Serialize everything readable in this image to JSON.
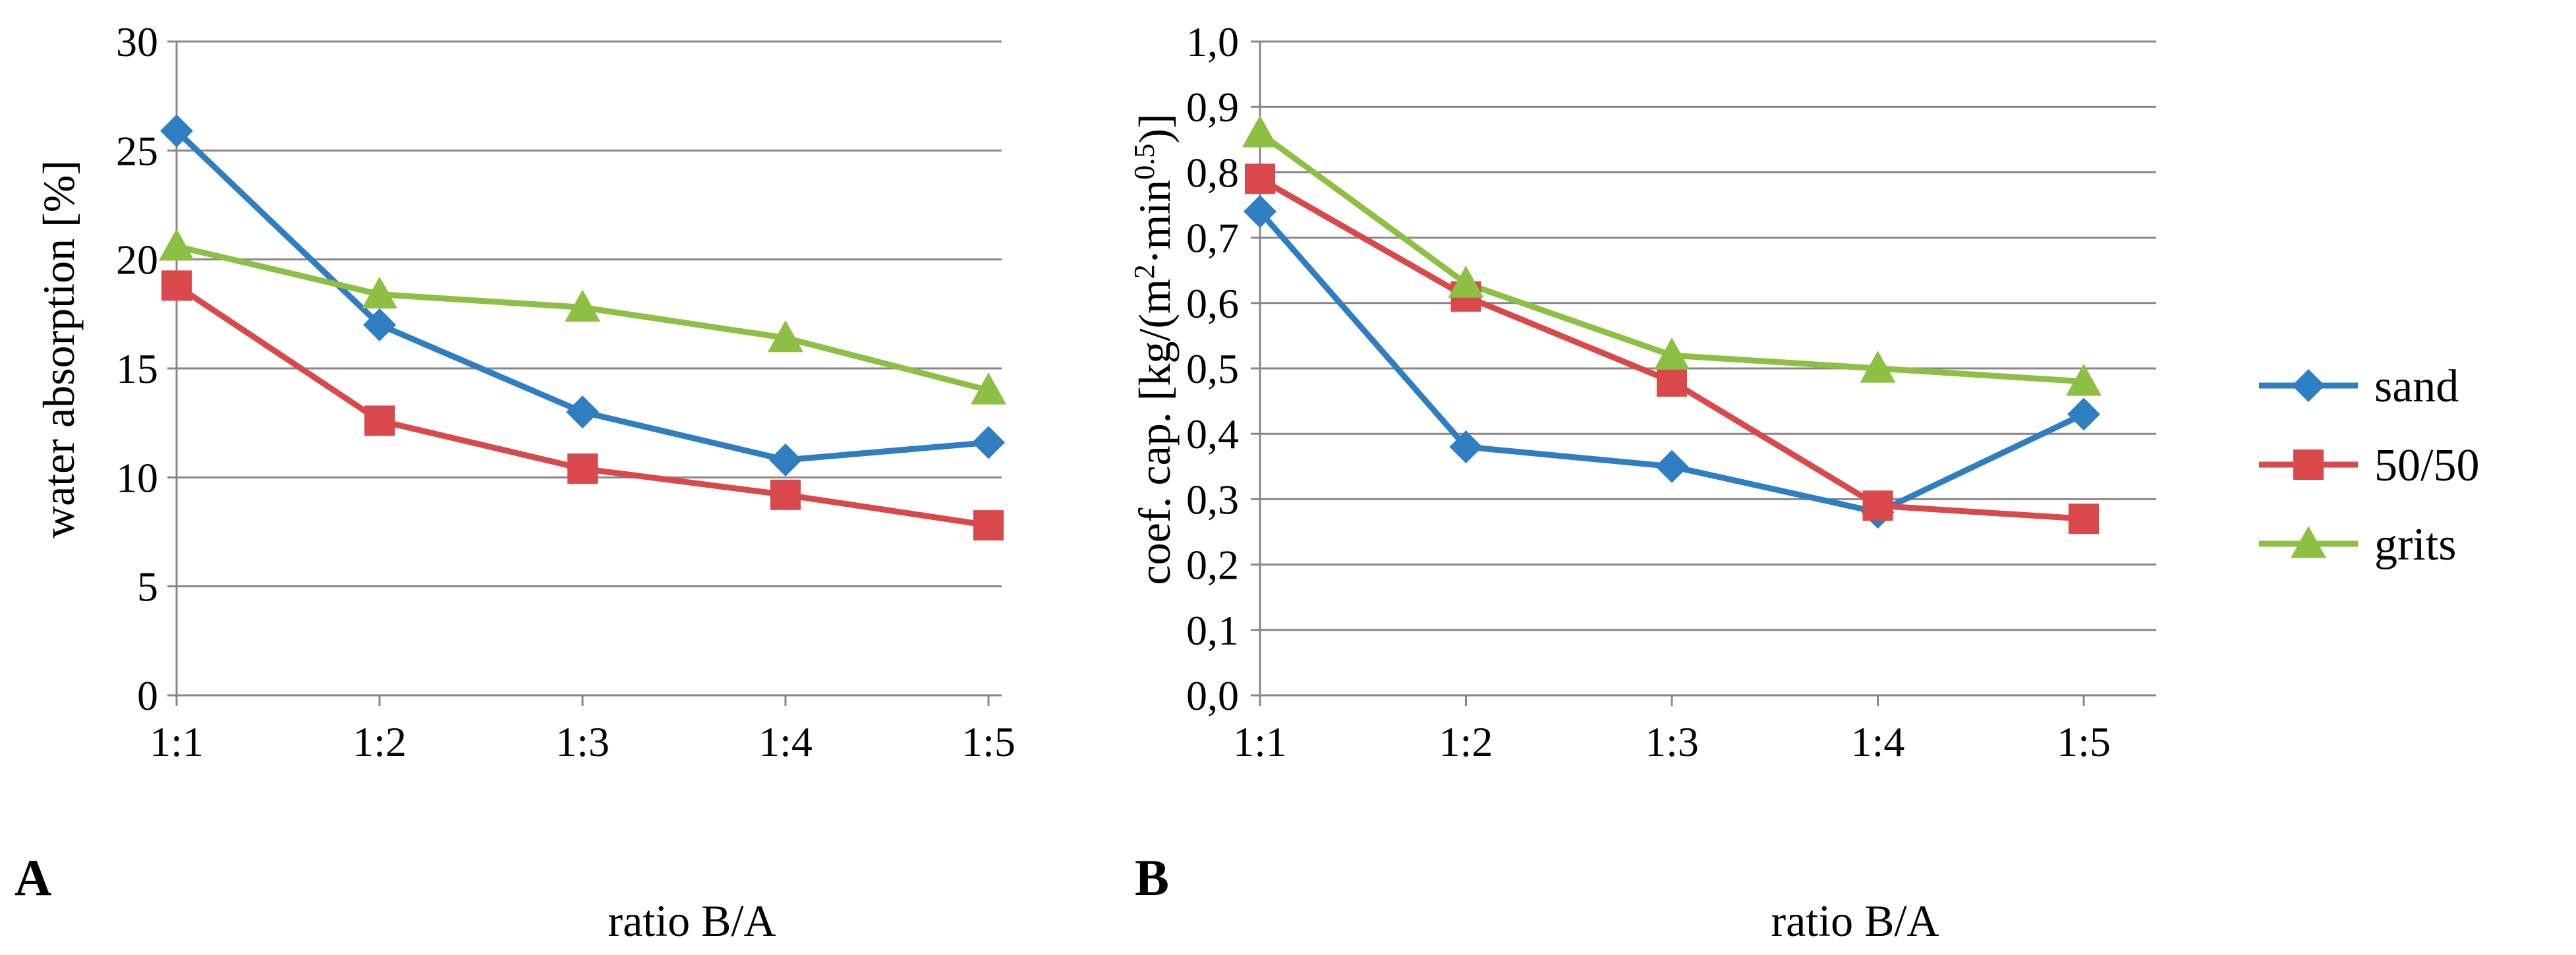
{
  "colors": {
    "sand": "#2E7EC1",
    "fifty": "#D9484A",
    "grits": "#8DBF43",
    "grid": "#878787",
    "axis": "#878787"
  },
  "legend": [
    {
      "name": "sand",
      "marker": "diamond",
      "color": "#2E7EC1"
    },
    {
      "name": "50/50",
      "marker": "square",
      "color": "#D9484A"
    },
    {
      "name": "grits",
      "marker": "triangle",
      "color": "#8DBF43"
    }
  ],
  "chart_data": [
    {
      "panel": "A",
      "type": "line",
      "categories": [
        "1:1",
        "1:2",
        "1:3",
        "1:4",
        "1:5"
      ],
      "xlabel": "ratio B/A",
      "ylabel": "water absorption [%]",
      "ylim": [
        0,
        30
      ],
      "yticks": [
        0,
        5,
        10,
        15,
        20,
        25,
        30
      ],
      "ytick_labels": [
        "0",
        "5",
        "10",
        "15",
        "20",
        "25",
        "30"
      ],
      "grid": true,
      "series": [
        {
          "name": "sand",
          "marker": "diamond",
          "color": "#2E7EC1",
          "values": [
            25.9,
            17.0,
            13.0,
            10.8,
            11.6
          ]
        },
        {
          "name": "50/50",
          "marker": "square",
          "color": "#D9484A",
          "values": [
            18.8,
            12.6,
            10.4,
            9.2,
            7.8
          ]
        },
        {
          "name": "grits",
          "marker": "triangle",
          "color": "#8DBF43",
          "values": [
            20.6,
            18.4,
            17.8,
            16.4,
            14.0
          ]
        }
      ]
    },
    {
      "panel": "B",
      "type": "line",
      "categories": [
        "1:1",
        "1:2",
        "1:3",
        "1:4",
        "1:5"
      ],
      "xlabel": "ratio B/A",
      "ylabel_main": "coef. cap. [kg/(m",
      "ylabel_sup1": "2",
      "ylabel_mid": "·min",
      "ylabel_sup2": "0.5",
      "ylabel_end": ")]",
      "ylim": [
        0,
        1.0
      ],
      "yticks": [
        0,
        0.1,
        0.2,
        0.3,
        0.4,
        0.5,
        0.6,
        0.7,
        0.8,
        0.9,
        1.0
      ],
      "ytick_labels": [
        "0,0",
        "0,1",
        "0,2",
        "0,3",
        "0,4",
        "0,5",
        "0,6",
        "0,7",
        "0,8",
        "0,9",
        "1,0"
      ],
      "grid": true,
      "legend": "right",
      "series": [
        {
          "name": "sand",
          "marker": "diamond",
          "color": "#2E7EC1",
          "values": [
            0.74,
            0.38,
            0.35,
            0.28,
            0.43
          ]
        },
        {
          "name": "50/50",
          "marker": "square",
          "color": "#D9484A",
          "values": [
            0.79,
            0.61,
            0.48,
            0.29,
            0.27
          ]
        },
        {
          "name": "grits",
          "marker": "triangle",
          "color": "#8DBF43",
          "values": [
            0.86,
            0.63,
            0.52,
            0.5,
            0.48
          ]
        }
      ]
    }
  ]
}
